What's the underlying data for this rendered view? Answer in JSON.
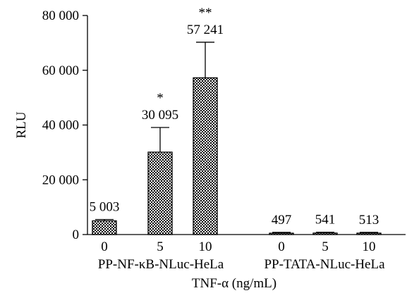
{
  "chart_data": {
    "type": "bar",
    "ylabel": "RLU",
    "xlabel": "TNF-α (ng/mL)",
    "ylim": [
      0,
      80000
    ],
    "yticks": [
      0,
      20000,
      40000,
      60000,
      80000
    ],
    "ytick_labels": [
      "0",
      "20 000",
      "40 000",
      "60 000",
      "80 000"
    ],
    "groups": [
      {
        "label": "PP-NF-κB-NLuc-HeLa",
        "bars": [
          {
            "x_label": "0",
            "value": 5003,
            "error": 500,
            "value_label": "5 003",
            "significance": ""
          },
          {
            "x_label": "5",
            "value": 30095,
            "error": 9000,
            "value_label": "30 095",
            "significance": "*"
          },
          {
            "x_label": "10",
            "value": 57241,
            "error": 13000,
            "value_label": "57 241",
            "significance": "**"
          }
        ]
      },
      {
        "label": "PP-TATA-NLuc-HeLa",
        "bars": [
          {
            "x_label": "0",
            "value": 497,
            "error": 300,
            "value_label": "497",
            "significance": ""
          },
          {
            "x_label": "5",
            "value": 541,
            "error": 300,
            "value_label": "541",
            "significance": ""
          },
          {
            "x_label": "10",
            "value": 513,
            "error": 300,
            "value_label": "513",
            "significance": ""
          }
        ]
      }
    ],
    "bar_pattern": "checkered black and white",
    "grid": false,
    "legend": "none"
  }
}
